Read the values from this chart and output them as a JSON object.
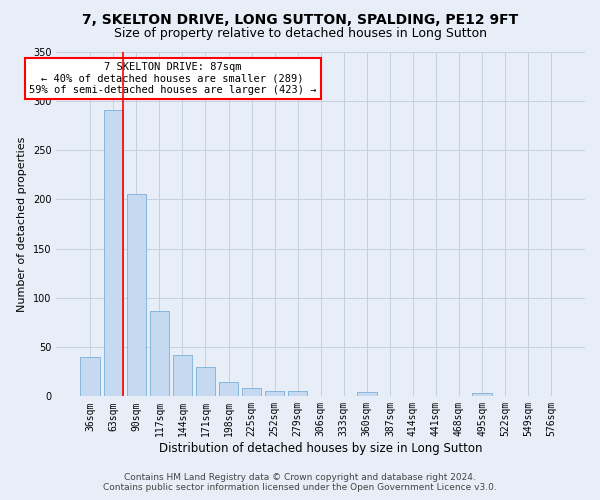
{
  "title": "7, SKELTON DRIVE, LONG SUTTON, SPALDING, PE12 9FT",
  "subtitle": "Size of property relative to detached houses in Long Sutton",
  "xlabel": "Distribution of detached houses by size in Long Sutton",
  "ylabel": "Number of detached properties",
  "footnote1": "Contains HM Land Registry data © Crown copyright and database right 2024.",
  "footnote2": "Contains public sector information licensed under the Open Government Licence v3.0.",
  "annotation_line1": "7 SKELTON DRIVE: 87sqm",
  "annotation_line2": "← 40% of detached houses are smaller (289)",
  "annotation_line3": "59% of semi-detached houses are larger (423) →",
  "bar_labels": [
    "36sqm",
    "63sqm",
    "90sqm",
    "117sqm",
    "144sqm",
    "171sqm",
    "198sqm",
    "225sqm",
    "252sqm",
    "279sqm",
    "306sqm",
    "333sqm",
    "360sqm",
    "387sqm",
    "414sqm",
    "441sqm",
    "468sqm",
    "495sqm",
    "522sqm",
    "549sqm",
    "576sqm"
  ],
  "bar_values": [
    40,
    291,
    205,
    87,
    42,
    30,
    15,
    8,
    5,
    5,
    0,
    0,
    4,
    0,
    0,
    0,
    0,
    3,
    0,
    0,
    0
  ],
  "bar_color": "#c5d9f0",
  "bar_edge_color": "#7ab0d8",
  "red_line_index": 1,
  "ylim": [
    0,
    350
  ],
  "yticks": [
    0,
    50,
    100,
    150,
    200,
    250,
    300,
    350
  ],
  "bg_color": "#e8eef8",
  "plot_bg_color": "#e8eef8",
  "grid_color": "#c8d0e0",
  "title_fontsize": 10,
  "subtitle_fontsize": 9,
  "xlabel_fontsize": 8.5,
  "ylabel_fontsize": 8,
  "annotation_fontsize": 7.5,
  "tick_fontsize": 7,
  "footnote_fontsize": 6.5
}
